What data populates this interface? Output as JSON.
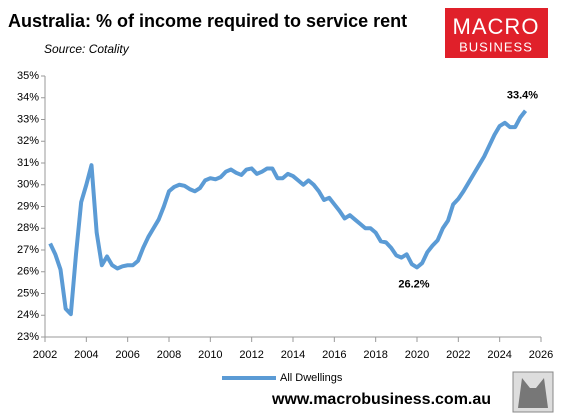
{
  "chart_data": {
    "type": "line",
    "title": "Australia: % of income required to service rent",
    "subtitle": "Source: Cotality",
    "logo": {
      "line1": "MACRO",
      "line2": "BUSINESS"
    },
    "footer": "www.macrobusiness.com.au",
    "x": [
      2002.25,
      2002.5,
      2002.75,
      2003,
      2003.25,
      2003.5,
      2003.75,
      2004,
      2004.25,
      2004.5,
      2004.75,
      2005,
      2005.25,
      2005.5,
      2005.75,
      2006,
      2006.25,
      2006.5,
      2006.75,
      2007,
      2007.25,
      2007.5,
      2007.75,
      2008,
      2008.25,
      2008.5,
      2008.75,
      2009,
      2009.25,
      2009.5,
      2009.75,
      2010,
      2010.25,
      2010.5,
      2010.75,
      2011,
      2011.25,
      2011.5,
      2011.75,
      2012,
      2012.25,
      2012.5,
      2012.75,
      2013,
      2013.25,
      2013.5,
      2013.75,
      2014,
      2014.25,
      2014.5,
      2014.75,
      2015,
      2015.25,
      2015.5,
      2015.75,
      2016,
      2016.25,
      2016.5,
      2016.75,
      2017,
      2017.25,
      2017.5,
      2017.75,
      2018,
      2018.25,
      2018.5,
      2018.75,
      2019,
      2019.25,
      2019.5,
      2019.75,
      2020,
      2020.25,
      2020.5,
      2020.75,
      2021,
      2021.25,
      2021.5,
      2021.75,
      2022,
      2022.25,
      2022.5,
      2022.75,
      2023,
      2023.25,
      2023.5,
      2023.75,
      2024,
      2024.25,
      2024.5,
      2024.75,
      2025,
      2025.25
    ],
    "series": [
      {
        "name": "All Dwellings",
        "color": "#5b9bd5",
        "values": [
          27.3,
          26.8,
          26.1,
          24.3,
          24.05,
          26.8,
          29.2,
          30.0,
          30.9,
          27.8,
          26.3,
          26.7,
          26.3,
          26.15,
          26.25,
          26.3,
          26.3,
          26.5,
          27.1,
          27.6,
          28.0,
          28.4,
          29.0,
          29.7,
          29.9,
          30.0,
          29.95,
          29.8,
          29.7,
          29.85,
          30.2,
          30.3,
          30.25,
          30.35,
          30.6,
          30.7,
          30.55,
          30.45,
          30.7,
          30.75,
          30.5,
          30.6,
          30.75,
          30.75,
          30.3,
          30.3,
          30.5,
          30.4,
          30.2,
          30.0,
          30.2,
          30.0,
          29.7,
          29.3,
          29.4,
          29.1,
          28.8,
          28.45,
          28.6,
          28.4,
          28.2,
          28.0,
          28.0,
          27.8,
          27.4,
          27.35,
          27.1,
          26.75,
          26.65,
          26.8,
          26.35,
          26.2,
          26.4,
          26.9,
          27.2,
          27.45,
          28.0,
          28.35,
          29.1,
          29.35,
          29.7,
          30.1,
          30.5,
          30.9,
          31.3,
          31.8,
          32.3,
          32.7,
          32.85,
          32.65,
          32.65,
          33.1,
          33.4
        ]
      }
    ],
    "annotations": [
      {
        "text": "33.4%",
        "x": 2025.25,
        "y": 33.4,
        "position": "above"
      },
      {
        "text": "26.2%",
        "x": 2020,
        "y": 26.2,
        "position": "below"
      }
    ],
    "xlim": [
      2002,
      2026
    ],
    "xticks": [
      2002,
      2004,
      2006,
      2008,
      2010,
      2012,
      2014,
      2016,
      2018,
      2020,
      2022,
      2024,
      2026
    ],
    "ylim": [
      23,
      35
    ],
    "yticks": [
      {
        "value": 23,
        "label": "23%"
      },
      {
        "value": 24,
        "label": "24%"
      },
      {
        "value": 25,
        "label": "25%"
      },
      {
        "value": 26,
        "label": "26%"
      },
      {
        "value": 27,
        "label": "27%"
      },
      {
        "value": 28,
        "label": "28%"
      },
      {
        "value": 29,
        "label": "29%"
      },
      {
        "value": 30,
        "label": "30%"
      },
      {
        "value": 31,
        "label": "31%"
      },
      {
        "value": 32,
        "label": "32%"
      },
      {
        "value": 33,
        "label": "33%"
      },
      {
        "value": 34,
        "label": "34%"
      },
      {
        "value": 35,
        "label": "35%"
      }
    ],
    "grid": false,
    "legend": "bottom"
  }
}
